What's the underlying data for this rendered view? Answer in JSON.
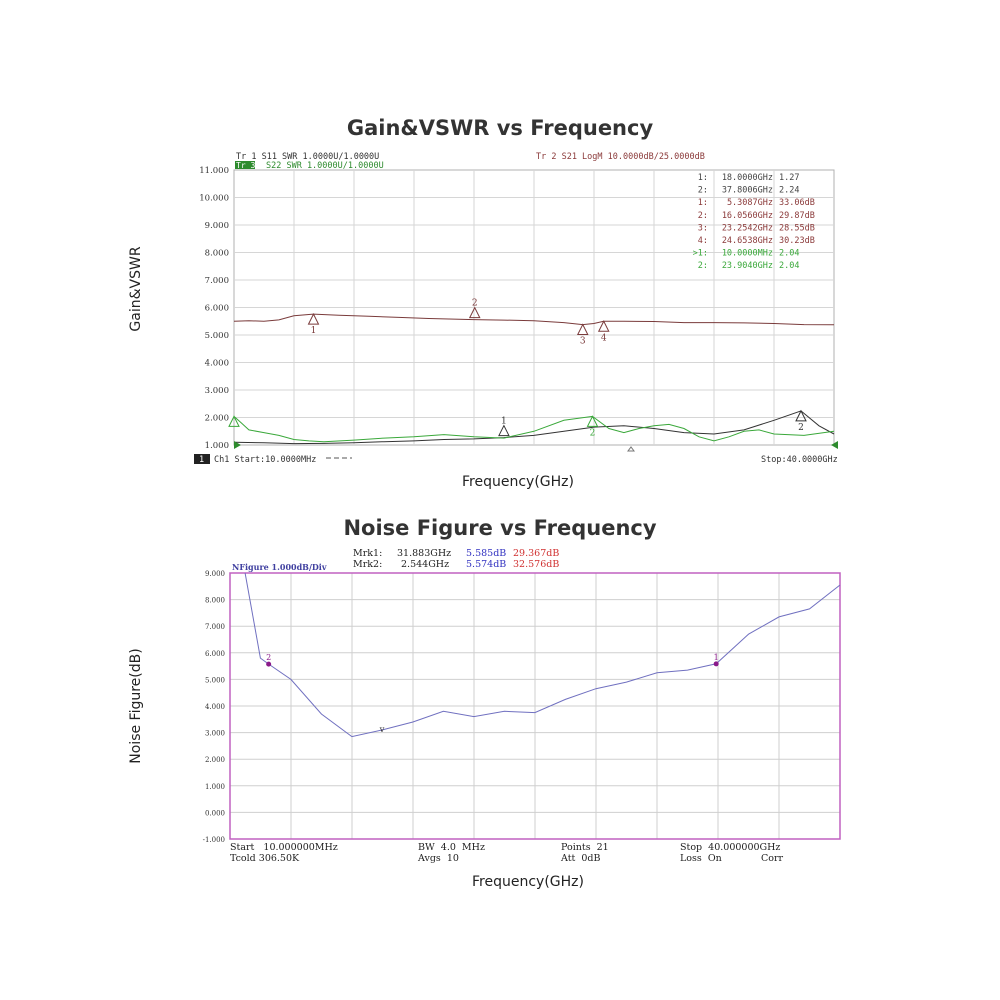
{
  "chart_data": [
    {
      "type": "line",
      "title": "Gain&VSWR vs Frequency",
      "xlabel": "Frequency(GHz)",
      "ylabel": "Gain&VSWR",
      "xlim": [
        0.01,
        40
      ],
      "ylim": [
        1.0,
        11.0
      ],
      "yticks": [
        "11.000",
        "10.000",
        "9.000",
        "8.000",
        "7.000",
        "6.000",
        "5.000",
        "4.000",
        "3.000",
        "2.000",
        "1.000"
      ],
      "grid": true,
      "header_left_1": "Tr 1  S11 SWR 1.0000U/1.0000U",
      "header_left_2_tag": "Tr 3",
      "header_left_2": "S22 SWR 1.0000U/1.0000U",
      "header_right": "Tr 2  S21 LogM 10.0000dB/25.0000dB",
      "footer_ch": "1",
      "footer_left": "Ch1  Start:10.0000MHz",
      "footer_right": "Stop:40.0000GHz",
      "markers_table": [
        {
          "id": "1:",
          "freq": "18.0000GHz",
          "val": "1.27",
          "color": "#444444"
        },
        {
          "id": "2:",
          "freq": "37.8006GHz",
          "val": "2.24",
          "color": "#444444"
        },
        {
          "id": "1:",
          "freq": "5.3087GHz",
          "val": "33.06dB",
          "color": "#8b3a3a"
        },
        {
          "id": "2:",
          "freq": "16.0560GHz",
          "val": "29.87dB",
          "color": "#8b3a3a"
        },
        {
          "id": "3:",
          "freq": "23.2542GHz",
          "val": "28.55dB",
          "color": "#8b3a3a"
        },
        {
          "id": "4:",
          "freq": "24.6538GHz",
          "val": "30.23dB",
          "color": "#8b3a3a"
        },
        {
          "id": ">1:",
          "freq": "10.0000MHz",
          "val": "2.04",
          "color": "#3aa83a"
        },
        {
          "id": "2:",
          "freq": "23.9040GHz",
          "val": "2.04",
          "color": "#3aa83a"
        }
      ],
      "series": [
        {
          "color": "#7a3b3b",
          "x": [
            0.01,
            1,
            2,
            3,
            4,
            5.3,
            7,
            9,
            11,
            13,
            15,
            16,
            18,
            20,
            22,
            23.25,
            24,
            24.65,
            26,
            28,
            30,
            32,
            34,
            36,
            38,
            40
          ],
          "y": [
            5.5,
            5.52,
            5.5,
            5.55,
            5.7,
            5.76,
            5.72,
            5.68,
            5.64,
            5.6,
            5.57,
            5.56,
            5.54,
            5.52,
            5.45,
            5.38,
            5.42,
            5.5,
            5.5,
            5.49,
            5.45,
            5.45,
            5.44,
            5.42,
            5.38,
            5.37
          ]
        },
        {
          "color": "#333333",
          "x": [
            0.01,
            2,
            4,
            6,
            8,
            10,
            12,
            14,
            16,
            18,
            20,
            22,
            24,
            26,
            28,
            30,
            32,
            34,
            36,
            37.8,
            39,
            40
          ],
          "y": [
            1.1,
            1.08,
            1.05,
            1.06,
            1.08,
            1.12,
            1.15,
            1.2,
            1.22,
            1.27,
            1.35,
            1.5,
            1.65,
            1.7,
            1.6,
            1.45,
            1.4,
            1.55,
            1.9,
            2.24,
            1.7,
            1.4
          ]
        },
        {
          "color": "#3aa83a",
          "x": [
            0.01,
            0.5,
            1,
            2,
            3,
            4,
            5,
            6,
            8,
            10,
            12,
            14,
            16,
            18,
            20,
            22,
            23.9,
            25,
            26,
            27,
            28,
            29,
            30,
            31,
            32,
            33,
            34,
            35,
            36,
            38,
            40
          ],
          "y": [
            2.04,
            1.8,
            1.55,
            1.45,
            1.35,
            1.2,
            1.15,
            1.12,
            1.18,
            1.25,
            1.3,
            1.38,
            1.3,
            1.25,
            1.5,
            1.9,
            2.04,
            1.6,
            1.45,
            1.6,
            1.7,
            1.75,
            1.6,
            1.3,
            1.15,
            1.3,
            1.5,
            1.55,
            1.4,
            1.35,
            1.5
          ]
        }
      ],
      "markers": [
        {
          "label": "1",
          "x": 5.3087,
          "y": 5.76,
          "color": "#7a3b3b",
          "below": true
        },
        {
          "label": "2",
          "x": 16.056,
          "y": 5.56,
          "color": "#7a3b3b",
          "below": false
        },
        {
          "label": "3",
          "x": 23.2542,
          "y": 5.38,
          "color": "#7a3b3b",
          "below": true
        },
        {
          "label": "4",
          "x": 24.6538,
          "y": 5.5,
          "color": "#7a3b3b",
          "below": true
        },
        {
          "label": "1",
          "x": 18.0,
          "y": 1.27,
          "color": "#333333",
          "below": false
        },
        {
          "label": "2",
          "x": 37.8006,
          "y": 2.24,
          "color": "#333333",
          "below": true
        },
        {
          "label": "",
          "x": 0.01,
          "y": 2.04,
          "color": "#3aa83a",
          "below": true
        },
        {
          "label": "2",
          "x": 23.904,
          "y": 2.04,
          "color": "#3aa83a",
          "below": true
        }
      ]
    },
    {
      "type": "line",
      "title": "Noise Figure vs Frequency",
      "xlabel": "Frequency(GHz)",
      "ylabel": "Noise Figure(dB)",
      "xlim": [
        0.01,
        40
      ],
      "ylim": [
        -1.0,
        9.0
      ],
      "yticks": [
        "9.000",
        "8.000",
        "7.000",
        "6.000",
        "5.000",
        "4.000",
        "3.000",
        "2.000",
        "1.000",
        "0.000",
        "-1.000"
      ],
      "grid": true,
      "trace_label": "NFigure  1.000dB/Div",
      "mrk1_label": "Mrk1:",
      "mrk1_freq": "31.883GHz",
      "mrk1_nf": "5.585dB",
      "mrk1_gain": "29.367dB",
      "mrk2_label": "Mrk2:",
      "mrk2_freq": "2.544GHz",
      "mrk2_nf": "5.574dB",
      "mrk2_gain": "32.576dB",
      "footer": {
        "start": "Start   10.000000MHz",
        "tcold": "Tcold 306.50K",
        "bw": "BW  4.0  MHz",
        "avgs": "Avgs  10",
        "points": "Points  21",
        "att": "Att  0dB",
        "stop": "Stop  40.000000GHz",
        "loss": "Loss  On",
        "corr": "Corr"
      },
      "series": [
        {
          "color": "#7070c0",
          "x": [
            1.0,
            2.0,
            2.544,
            4,
            6,
            8,
            10,
            12,
            14,
            16,
            18,
            20,
            22,
            24,
            26,
            28,
            30,
            31.883,
            34,
            36,
            38,
            40
          ],
          "y": [
            9.0,
            5.8,
            5.574,
            5.0,
            3.7,
            2.85,
            3.1,
            3.4,
            3.8,
            3.6,
            3.8,
            3.75,
            4.25,
            4.65,
            4.9,
            5.25,
            5.35,
            5.585,
            6.7,
            7.35,
            7.65,
            8.55
          ]
        }
      ],
      "markers": [
        {
          "label": "2",
          "x": 2.544,
          "y": 5.574,
          "color": "#8a1a8a"
        },
        {
          "label": "1",
          "x": 31.883,
          "y": 5.585,
          "color": "#8a1a8a"
        }
      ]
    }
  ]
}
